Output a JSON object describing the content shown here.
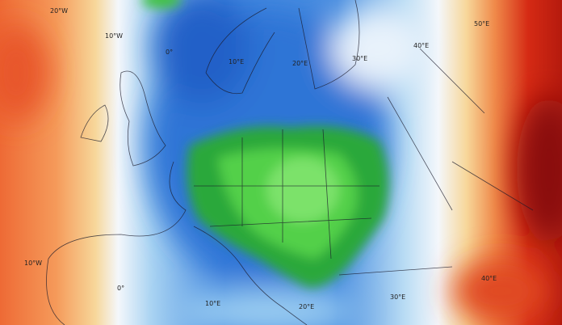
{
  "map": {
    "colors": {
      "warm_far": "#e8562a",
      "orange": "#f59a5a",
      "yellow": "#f7e0a0",
      "white": "#f4f7fb",
      "light_blue": "#a9d3f2",
      "blue": "#3f86df",
      "deep_blue": "#2160c8",
      "green": "#3ec23a",
      "light_green": "#7be26a",
      "dark_red": "#8a0f0a",
      "red": "#d52a14"
    },
    "top_labels": [
      "20°W",
      "10°W",
      "0°",
      "10°E",
      "20°E",
      "30°E",
      "40°E",
      "50°E"
    ],
    "bottom_labels": [
      "10°W",
      "0°",
      "10°E",
      "20°E",
      "30°E",
      "40°E"
    ]
  }
}
